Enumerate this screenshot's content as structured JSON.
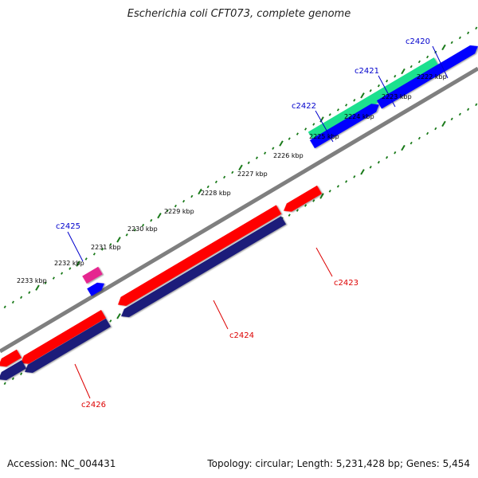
{
  "title": "Escherichia coli CFT073, complete genome",
  "footer": {
    "accession": "Accession: NC_004431",
    "summary": "Topology: circular; Length: 5,231,428 bp; Genes: 5,454"
  },
  "colors": {
    "backbone": "#7f7f7f",
    "tick": "#1a7a1a",
    "forward_gene": "#0000ff",
    "forward_cds": "#1fe08e",
    "reverse_gene": "#1a1a7a",
    "reverse_cds": "#ff0000",
    "misc_feature": "#e5258f",
    "forward_label": "#0000cc",
    "reverse_label": "#dd0000"
  },
  "scale_labels": [
    "2222 kbp",
    "2223 kbp",
    "2224 kbp",
    "2225 kbp",
    "2226 kbp",
    "2227 kbp",
    "2228 kbp",
    "2229 kbp",
    "2230 kbp",
    "2231 kbp",
    "2232 kbp",
    "2233 kbp"
  ],
  "genes_forward": [
    {
      "label": "c2420"
    },
    {
      "label": "c2421"
    },
    {
      "label": "c2422"
    },
    {
      "label": "c2425"
    }
  ],
  "genes_reverse": [
    {
      "label": "c2423"
    },
    {
      "label": "c2424"
    },
    {
      "label": "c2426"
    }
  ]
}
